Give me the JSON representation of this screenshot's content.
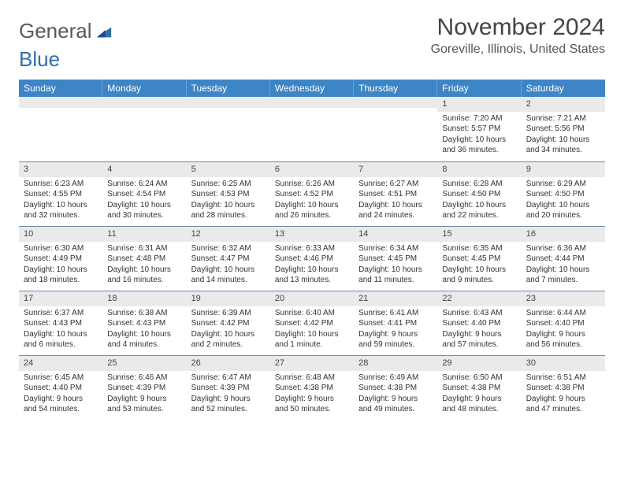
{
  "logo": {
    "part1": "General",
    "part2": "Blue"
  },
  "title": "November 2024",
  "location": "Goreville, Illinois, United States",
  "colors": {
    "header_bg": "#3d85c6",
    "header_text": "#ffffff",
    "band_bg": "#eaeaea",
    "band_border_top": "#6a8bb0",
    "body_text": "#333333",
    "logo_gray": "#5a5a5a",
    "logo_blue": "#2f6fb0"
  },
  "day_names": [
    "Sunday",
    "Monday",
    "Tuesday",
    "Wednesday",
    "Thursday",
    "Friday",
    "Saturday"
  ],
  "weeks": [
    [
      {
        "n": "",
        "sr": "",
        "ss": "",
        "dl": ""
      },
      {
        "n": "",
        "sr": "",
        "ss": "",
        "dl": ""
      },
      {
        "n": "",
        "sr": "",
        "ss": "",
        "dl": ""
      },
      {
        "n": "",
        "sr": "",
        "ss": "",
        "dl": ""
      },
      {
        "n": "",
        "sr": "",
        "ss": "",
        "dl": ""
      },
      {
        "n": "1",
        "sr": "Sunrise: 7:20 AM",
        "ss": "Sunset: 5:57 PM",
        "dl": "Daylight: 10 hours and 36 minutes."
      },
      {
        "n": "2",
        "sr": "Sunrise: 7:21 AM",
        "ss": "Sunset: 5:56 PM",
        "dl": "Daylight: 10 hours and 34 minutes."
      }
    ],
    [
      {
        "n": "3",
        "sr": "Sunrise: 6:23 AM",
        "ss": "Sunset: 4:55 PM",
        "dl": "Daylight: 10 hours and 32 minutes."
      },
      {
        "n": "4",
        "sr": "Sunrise: 6:24 AM",
        "ss": "Sunset: 4:54 PM",
        "dl": "Daylight: 10 hours and 30 minutes."
      },
      {
        "n": "5",
        "sr": "Sunrise: 6:25 AM",
        "ss": "Sunset: 4:53 PM",
        "dl": "Daylight: 10 hours and 28 minutes."
      },
      {
        "n": "6",
        "sr": "Sunrise: 6:26 AM",
        "ss": "Sunset: 4:52 PM",
        "dl": "Daylight: 10 hours and 26 minutes."
      },
      {
        "n": "7",
        "sr": "Sunrise: 6:27 AM",
        "ss": "Sunset: 4:51 PM",
        "dl": "Daylight: 10 hours and 24 minutes."
      },
      {
        "n": "8",
        "sr": "Sunrise: 6:28 AM",
        "ss": "Sunset: 4:50 PM",
        "dl": "Daylight: 10 hours and 22 minutes."
      },
      {
        "n": "9",
        "sr": "Sunrise: 6:29 AM",
        "ss": "Sunset: 4:50 PM",
        "dl": "Daylight: 10 hours and 20 minutes."
      }
    ],
    [
      {
        "n": "10",
        "sr": "Sunrise: 6:30 AM",
        "ss": "Sunset: 4:49 PM",
        "dl": "Daylight: 10 hours and 18 minutes."
      },
      {
        "n": "11",
        "sr": "Sunrise: 6:31 AM",
        "ss": "Sunset: 4:48 PM",
        "dl": "Daylight: 10 hours and 16 minutes."
      },
      {
        "n": "12",
        "sr": "Sunrise: 6:32 AM",
        "ss": "Sunset: 4:47 PM",
        "dl": "Daylight: 10 hours and 14 minutes."
      },
      {
        "n": "13",
        "sr": "Sunrise: 6:33 AM",
        "ss": "Sunset: 4:46 PM",
        "dl": "Daylight: 10 hours and 13 minutes."
      },
      {
        "n": "14",
        "sr": "Sunrise: 6:34 AM",
        "ss": "Sunset: 4:45 PM",
        "dl": "Daylight: 10 hours and 11 minutes."
      },
      {
        "n": "15",
        "sr": "Sunrise: 6:35 AM",
        "ss": "Sunset: 4:45 PM",
        "dl": "Daylight: 10 hours and 9 minutes."
      },
      {
        "n": "16",
        "sr": "Sunrise: 6:36 AM",
        "ss": "Sunset: 4:44 PM",
        "dl": "Daylight: 10 hours and 7 minutes."
      }
    ],
    [
      {
        "n": "17",
        "sr": "Sunrise: 6:37 AM",
        "ss": "Sunset: 4:43 PM",
        "dl": "Daylight: 10 hours and 6 minutes."
      },
      {
        "n": "18",
        "sr": "Sunrise: 6:38 AM",
        "ss": "Sunset: 4:43 PM",
        "dl": "Daylight: 10 hours and 4 minutes."
      },
      {
        "n": "19",
        "sr": "Sunrise: 6:39 AM",
        "ss": "Sunset: 4:42 PM",
        "dl": "Daylight: 10 hours and 2 minutes."
      },
      {
        "n": "20",
        "sr": "Sunrise: 6:40 AM",
        "ss": "Sunset: 4:42 PM",
        "dl": "Daylight: 10 hours and 1 minute."
      },
      {
        "n": "21",
        "sr": "Sunrise: 6:41 AM",
        "ss": "Sunset: 4:41 PM",
        "dl": "Daylight: 9 hours and 59 minutes."
      },
      {
        "n": "22",
        "sr": "Sunrise: 6:43 AM",
        "ss": "Sunset: 4:40 PM",
        "dl": "Daylight: 9 hours and 57 minutes."
      },
      {
        "n": "23",
        "sr": "Sunrise: 6:44 AM",
        "ss": "Sunset: 4:40 PM",
        "dl": "Daylight: 9 hours and 56 minutes."
      }
    ],
    [
      {
        "n": "24",
        "sr": "Sunrise: 6:45 AM",
        "ss": "Sunset: 4:40 PM",
        "dl": "Daylight: 9 hours and 54 minutes."
      },
      {
        "n": "25",
        "sr": "Sunrise: 6:46 AM",
        "ss": "Sunset: 4:39 PM",
        "dl": "Daylight: 9 hours and 53 minutes."
      },
      {
        "n": "26",
        "sr": "Sunrise: 6:47 AM",
        "ss": "Sunset: 4:39 PM",
        "dl": "Daylight: 9 hours and 52 minutes."
      },
      {
        "n": "27",
        "sr": "Sunrise: 6:48 AM",
        "ss": "Sunset: 4:38 PM",
        "dl": "Daylight: 9 hours and 50 minutes."
      },
      {
        "n": "28",
        "sr": "Sunrise: 6:49 AM",
        "ss": "Sunset: 4:38 PM",
        "dl": "Daylight: 9 hours and 49 minutes."
      },
      {
        "n": "29",
        "sr": "Sunrise: 6:50 AM",
        "ss": "Sunset: 4:38 PM",
        "dl": "Daylight: 9 hours and 48 minutes."
      },
      {
        "n": "30",
        "sr": "Sunrise: 6:51 AM",
        "ss": "Sunset: 4:38 PM",
        "dl": "Daylight: 9 hours and 47 minutes."
      }
    ]
  ]
}
